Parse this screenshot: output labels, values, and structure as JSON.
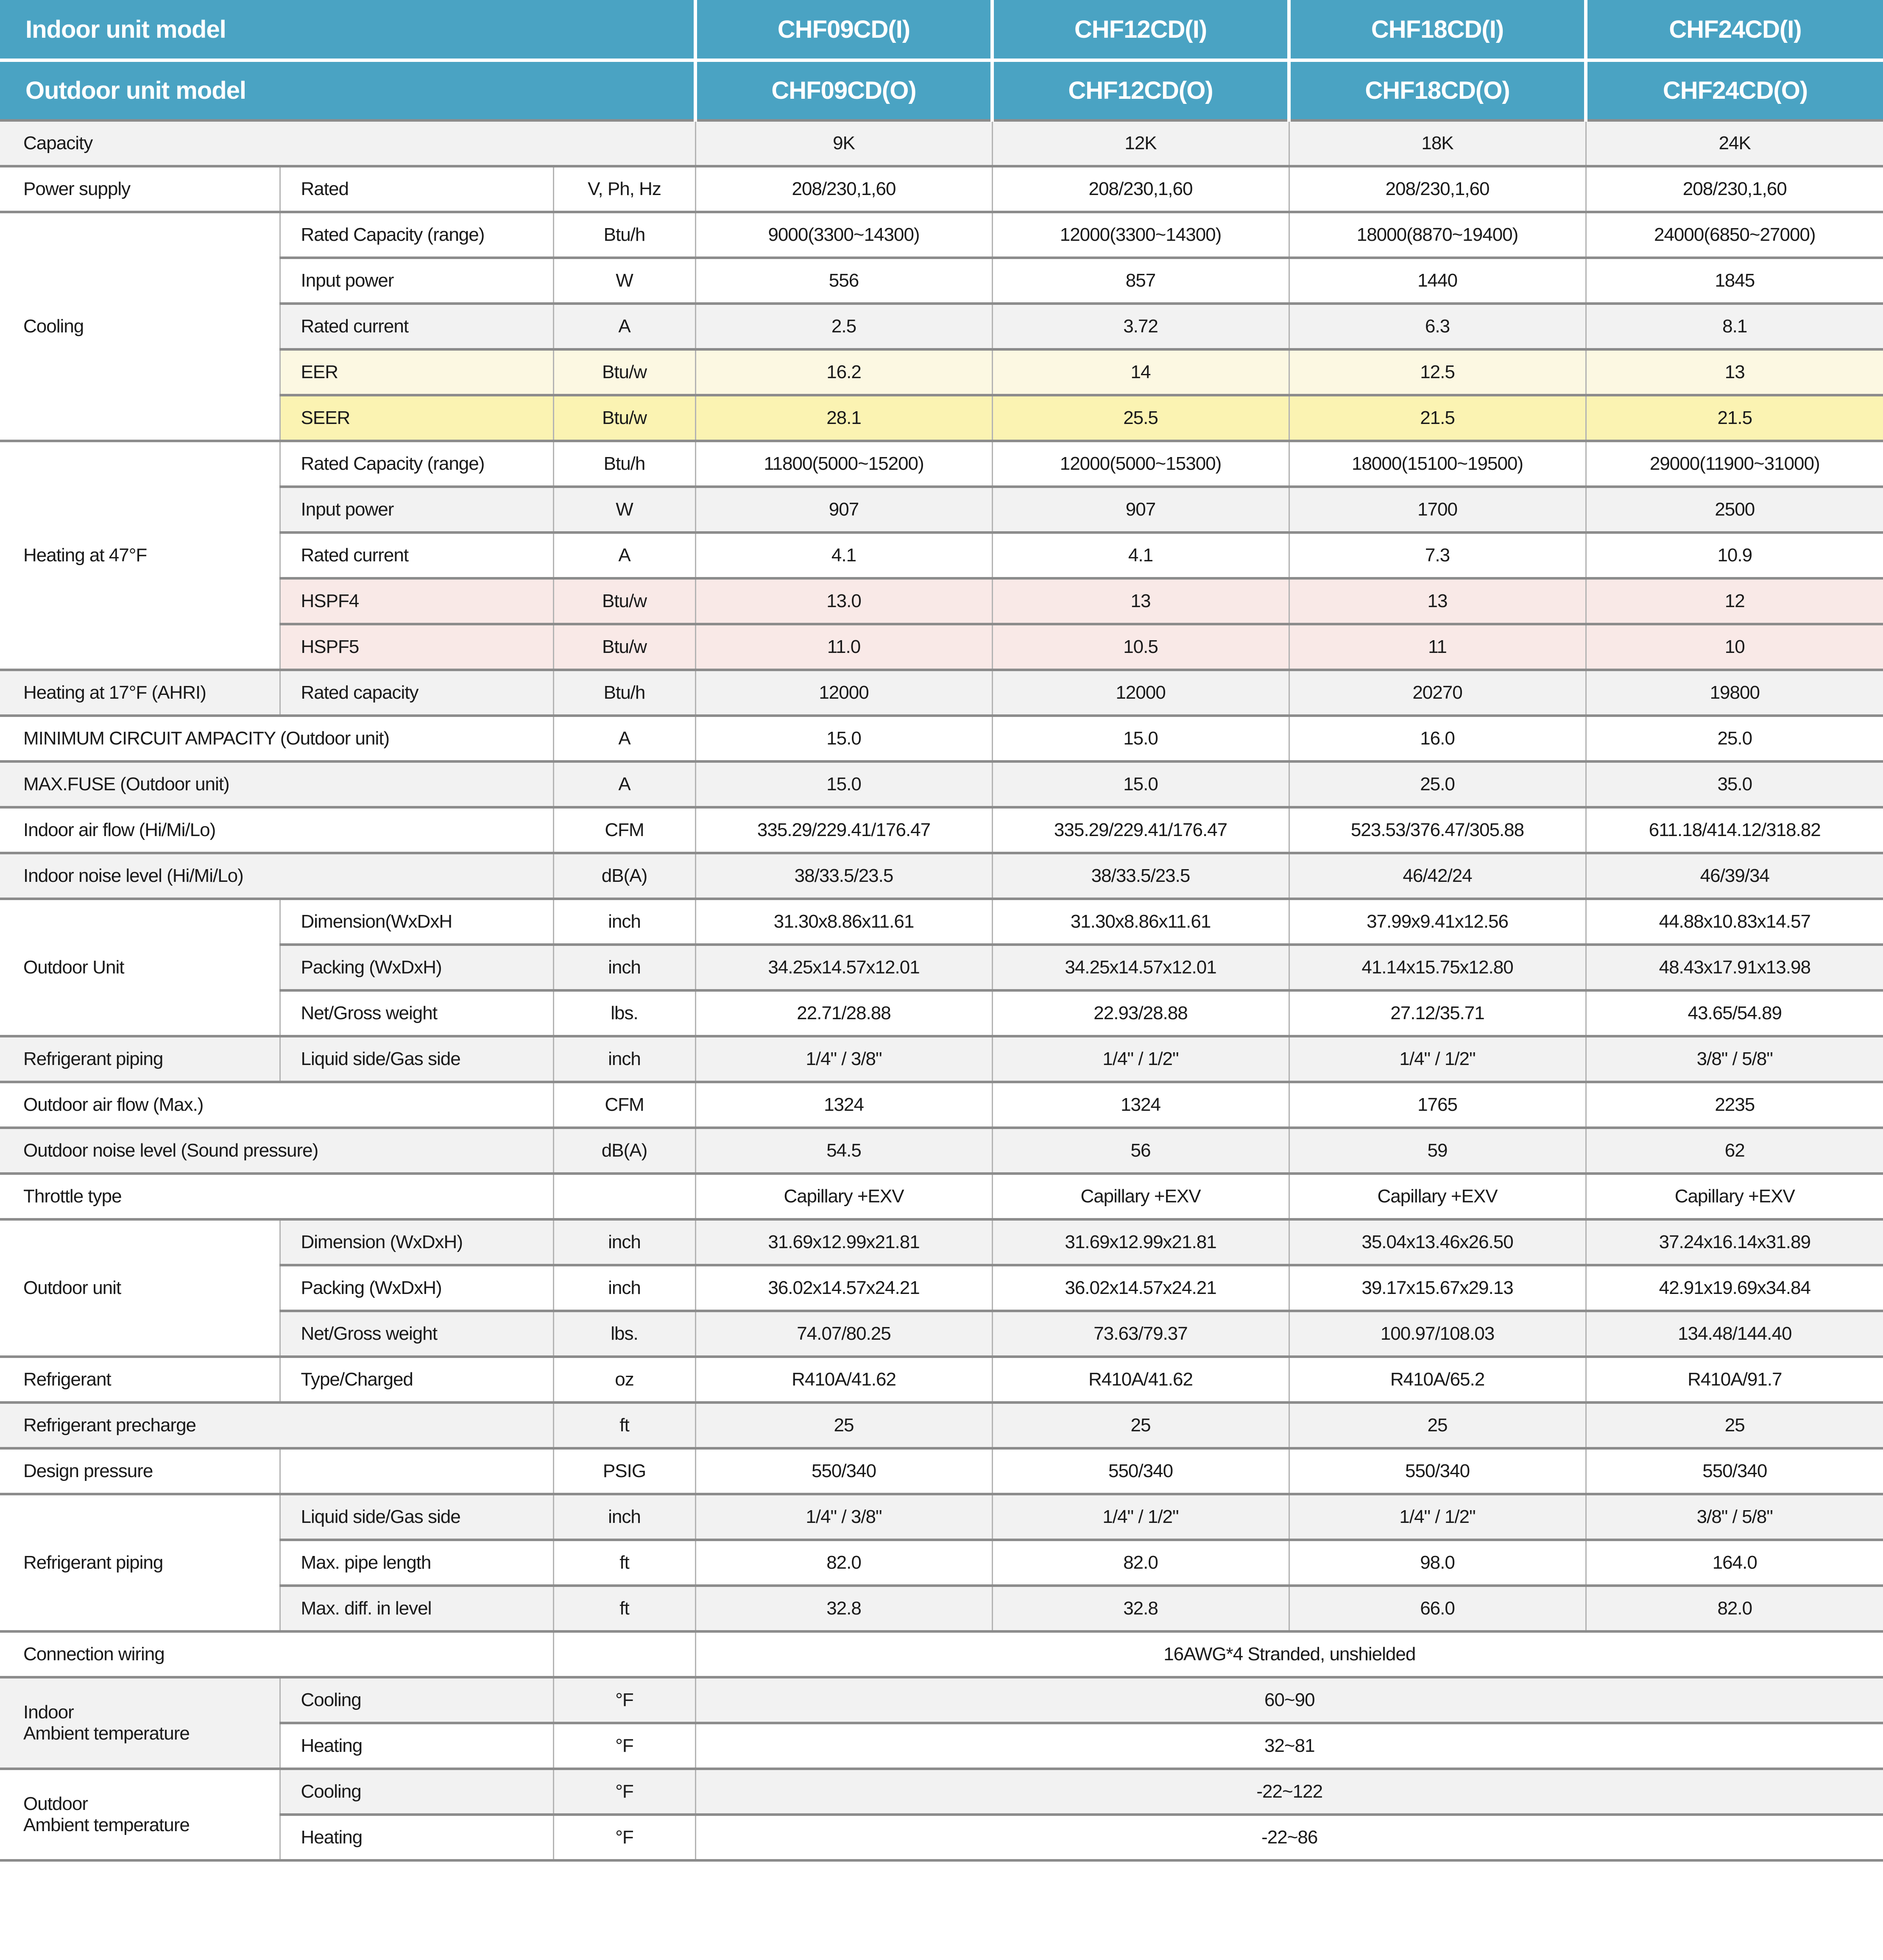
{
  "title": "Air conditioner specification table",
  "colors": {
    "header_teal": "#4AA3C3",
    "header_text": "#FFFFFF",
    "row_gray": "#F2F2F2",
    "row_white": "#FFFFFF",
    "eer_yellow": "#FCF8E2",
    "seer_yellow": "#FBF3B2",
    "hspf_pink": "#F9E9E7",
    "border_horizontal": "#8C8C8C",
    "border_vertical": "#B3B3B3",
    "text": "#1A1A1A"
  },
  "header": {
    "rows": [
      {
        "label": "Indoor unit model",
        "models": [
          "CHF09CD(I)",
          "CHF12CD(I)",
          "CHF18CD(I)",
          "CHF24CD(I)"
        ]
      },
      {
        "label": "Outdoor unit model",
        "models": [
          "CHF09CD(O)",
          "CHF12CD(O)",
          "CHF18CD(O)",
          "CHF24CD(O)"
        ]
      }
    ]
  },
  "rows": [
    {
      "name": "capacity",
      "bg": "g",
      "cells": [
        {
          "t": "Capacity",
          "k": "label",
          "cs": 3
        },
        {
          "t": "9K"
        },
        {
          "t": "12K"
        },
        {
          "t": "18K"
        },
        {
          "t": "24K"
        }
      ]
    },
    {
      "name": "power-supply",
      "bg": "w",
      "cells": [
        {
          "t": "Power supply",
          "k": "label"
        },
        {
          "t": "Rated",
          "k": "sub"
        },
        {
          "t": "V, Ph, Hz",
          "k": "unit"
        },
        {
          "t": "208/230,1,60"
        },
        {
          "t": "208/230,1,60"
        },
        {
          "t": "208/230,1,60"
        },
        {
          "t": "208/230,1,60"
        }
      ]
    },
    {
      "name": "cooling-rated-capacity",
      "bg": "w",
      "cells": [
        {
          "t": "Cooling",
          "k": "label",
          "rs": 5,
          "bg": "w"
        },
        {
          "t": "Rated Capacity (range)",
          "k": "sub"
        },
        {
          "t": "Btu/h",
          "k": "unit"
        },
        {
          "t": "9000(3300~14300)"
        },
        {
          "t": "12000(3300~14300)"
        },
        {
          "t": "18000(8870~19400)"
        },
        {
          "t": "24000(6850~27000)"
        }
      ]
    },
    {
      "name": "cooling-input-power",
      "bg": "w",
      "cells": [
        {
          "t": "Input power",
          "k": "sub"
        },
        {
          "t": "W",
          "k": "unit"
        },
        {
          "t": "556"
        },
        {
          "t": "857"
        },
        {
          "t": "1440"
        },
        {
          "t": "1845"
        }
      ]
    },
    {
      "name": "cooling-rated-current",
      "bg": "g",
      "cells": [
        {
          "t": "Rated current",
          "k": "sub"
        },
        {
          "t": "A",
          "k": "unit"
        },
        {
          "t": "2.5"
        },
        {
          "t": "3.72"
        },
        {
          "t": "6.3"
        },
        {
          "t": "8.1"
        }
      ]
    },
    {
      "name": "cooling-eer",
      "bg": "y1",
      "cells": [
        {
          "t": "EER",
          "k": "sub"
        },
        {
          "t": "Btu/w",
          "k": "unit"
        },
        {
          "t": "16.2"
        },
        {
          "t": "14"
        },
        {
          "t": "12.5"
        },
        {
          "t": "13"
        }
      ]
    },
    {
      "name": "cooling-seer",
      "bg": "y2",
      "cells": [
        {
          "t": "SEER",
          "k": "sub"
        },
        {
          "t": "Btu/w",
          "k": "unit"
        },
        {
          "t": "28.1"
        },
        {
          "t": "25.5"
        },
        {
          "t": "21.5"
        },
        {
          "t": "21.5"
        }
      ]
    },
    {
      "name": "heating47-rated-capacity",
      "bg": "w",
      "cells": [
        {
          "t": "Heating at 47°F",
          "k": "label",
          "rs": 5,
          "bg": "w"
        },
        {
          "t": "Rated Capacity (range)",
          "k": "sub"
        },
        {
          "t": "Btu/h",
          "k": "unit"
        },
        {
          "t": "11800(5000~15200)"
        },
        {
          "t": "12000(5000~15300)"
        },
        {
          "t": "18000(15100~19500)"
        },
        {
          "t": "29000(11900~31000)"
        }
      ]
    },
    {
      "name": "heating47-input-power",
      "bg": "g",
      "cells": [
        {
          "t": "Input power",
          "k": "sub"
        },
        {
          "t": "W",
          "k": "unit"
        },
        {
          "t": "907"
        },
        {
          "t": "907"
        },
        {
          "t": "1700"
        },
        {
          "t": "2500"
        }
      ]
    },
    {
      "name": "heating47-rated-current",
      "bg": "w",
      "cells": [
        {
          "t": "Rated current",
          "k": "sub"
        },
        {
          "t": "A",
          "k": "unit"
        },
        {
          "t": "4.1"
        },
        {
          "t": "4.1"
        },
        {
          "t": "7.3"
        },
        {
          "t": "10.9"
        }
      ]
    },
    {
      "name": "heating47-hspf4",
      "bg": "p",
      "cells": [
        {
          "t": "HSPF4",
          "k": "sub"
        },
        {
          "t": "Btu/w",
          "k": "unit"
        },
        {
          "t": "13.0"
        },
        {
          "t": "13"
        },
        {
          "t": "13"
        },
        {
          "t": "12"
        }
      ]
    },
    {
      "name": "heating47-hspf5",
      "bg": "p",
      "cells": [
        {
          "t": "HSPF5",
          "k": "sub"
        },
        {
          "t": "Btu/w",
          "k": "unit"
        },
        {
          "t": "11.0"
        },
        {
          "t": "10.5"
        },
        {
          "t": "11"
        },
        {
          "t": "10"
        }
      ]
    },
    {
      "name": "heating17-rated-capacity",
      "bg": "g",
      "cells": [
        {
          "t": "Heating at 17°F (AHRI)",
          "k": "label"
        },
        {
          "t": "Rated capacity",
          "k": "sub"
        },
        {
          "t": "Btu/h",
          "k": "unit"
        },
        {
          "t": "12000"
        },
        {
          "t": "12000"
        },
        {
          "t": "20270"
        },
        {
          "t": "19800"
        }
      ]
    },
    {
      "name": "min-circuit-ampacity",
      "bg": "w",
      "cells": [
        {
          "t": "MINIMUM CIRCUIT AMPACITY (Outdoor unit)",
          "k": "label",
          "cs": 2
        },
        {
          "t": "A",
          "k": "unit"
        },
        {
          "t": "15.0"
        },
        {
          "t": "15.0"
        },
        {
          "t": "16.0"
        },
        {
          "t": "25.0"
        }
      ]
    },
    {
      "name": "max-fuse",
      "bg": "g",
      "cells": [
        {
          "t": "MAX.FUSE (Outdoor unit)",
          "k": "label",
          "cs": 2
        },
        {
          "t": "A",
          "k": "unit"
        },
        {
          "t": "15.0"
        },
        {
          "t": "15.0"
        },
        {
          "t": "25.0"
        },
        {
          "t": "35.0"
        }
      ]
    },
    {
      "name": "indoor-air-flow",
      "bg": "w",
      "cells": [
        {
          "t": "Indoor air flow (Hi/Mi/Lo)",
          "k": "label",
          "cs": 2
        },
        {
          "t": "CFM",
          "k": "unit"
        },
        {
          "t": "335.29/229.41/176.47"
        },
        {
          "t": "335.29/229.41/176.47"
        },
        {
          "t": "523.53/376.47/305.88"
        },
        {
          "t": "611.18/414.12/318.82"
        }
      ]
    },
    {
      "name": "indoor-noise-level",
      "bg": "g",
      "cells": [
        {
          "t": "Indoor noise level (Hi/Mi/Lo)",
          "k": "label",
          "cs": 2
        },
        {
          "t": "dB(A)",
          "k": "unit"
        },
        {
          "t": "38/33.5/23.5"
        },
        {
          "t": "38/33.5/23.5"
        },
        {
          "t": "46/42/24"
        },
        {
          "t": "46/39/34"
        }
      ]
    },
    {
      "name": "outdoor-unit1-dimension",
      "bg": "w",
      "cells": [
        {
          "t": "Outdoor Unit",
          "k": "label",
          "rs": 3,
          "bg": "w"
        },
        {
          "t": "Dimension(WxDxH",
          "k": "sub"
        },
        {
          "t": "inch",
          "k": "unit"
        },
        {
          "t": "31.30x8.86x11.61"
        },
        {
          "t": "31.30x8.86x11.61"
        },
        {
          "t": "37.99x9.41x12.56"
        },
        {
          "t": "44.88x10.83x14.57"
        }
      ]
    },
    {
      "name": "outdoor-unit1-packing",
      "bg": "g",
      "cells": [
        {
          "t": "Packing  (WxDxH)",
          "k": "sub"
        },
        {
          "t": "inch",
          "k": "unit"
        },
        {
          "t": "34.25x14.57x12.01"
        },
        {
          "t": "34.25x14.57x12.01"
        },
        {
          "t": "41.14x15.75x12.80"
        },
        {
          "t": "48.43x17.91x13.98"
        }
      ]
    },
    {
      "name": "outdoor-unit1-weight",
      "bg": "w",
      "cells": [
        {
          "t": "Net/Gross weight",
          "k": "sub"
        },
        {
          "t": "lbs.",
          "k": "unit"
        },
        {
          "t": "22.71/28.88"
        },
        {
          "t": "22.93/28.88"
        },
        {
          "t": "27.12/35.71"
        },
        {
          "t": "43.65/54.89"
        }
      ]
    },
    {
      "name": "refrigerant-piping1",
      "bg": "g",
      "cells": [
        {
          "t": "Refrigerant piping",
          "k": "label"
        },
        {
          "t": "Liquid side/Gas side",
          "k": "sub"
        },
        {
          "t": "inch",
          "k": "unit"
        },
        {
          "t": "1/4\" / 3/8\""
        },
        {
          "t": "1/4\" / 1/2\""
        },
        {
          "t": "1/4\" / 1/2\""
        },
        {
          "t": "3/8\" / 5/8\""
        }
      ]
    },
    {
      "name": "outdoor-air-flow",
      "bg": "w",
      "cells": [
        {
          "t": "Outdoor air flow (Max.)",
          "k": "label",
          "cs": 2
        },
        {
          "t": "CFM",
          "k": "unit"
        },
        {
          "t": "1324"
        },
        {
          "t": "1324"
        },
        {
          "t": "1765"
        },
        {
          "t": "2235"
        }
      ]
    },
    {
      "name": "outdoor-noise-level",
      "bg": "g",
      "cells": [
        {
          "t": "Outdoor noise level (Sound pressure)",
          "k": "label",
          "cs": 2
        },
        {
          "t": "dB(A)",
          "k": "unit"
        },
        {
          "t": "54.5"
        },
        {
          "t": "56"
        },
        {
          "t": "59"
        },
        {
          "t": "62"
        }
      ]
    },
    {
      "name": "throttle-type",
      "bg": "w",
      "cells": [
        {
          "t": "Throttle type",
          "k": "label",
          "cs": 2
        },
        {
          "t": "",
          "k": "unit"
        },
        {
          "t": "Capillary +EXV"
        },
        {
          "t": "Capillary +EXV"
        },
        {
          "t": "Capillary +EXV"
        },
        {
          "t": "Capillary +EXV"
        }
      ]
    },
    {
      "name": "outdoor-unit2-dimension",
      "bg": "g",
      "cells": [
        {
          "t": "Outdoor unit",
          "k": "label",
          "rs": 3,
          "bg": "w"
        },
        {
          "t": "Dimension (WxDxH)",
          "k": "sub"
        },
        {
          "t": "inch",
          "k": "unit"
        },
        {
          "t": "31.69x12.99x21.81"
        },
        {
          "t": "31.69x12.99x21.81"
        },
        {
          "t": "35.04x13.46x26.50"
        },
        {
          "t": "37.24x16.14x31.89"
        }
      ]
    },
    {
      "name": "outdoor-unit2-packing",
      "bg": "w",
      "cells": [
        {
          "t": "Packing (WxDxH)",
          "k": "sub"
        },
        {
          "t": "inch",
          "k": "unit"
        },
        {
          "t": "36.02x14.57x24.21"
        },
        {
          "t": "36.02x14.57x24.21"
        },
        {
          "t": "39.17x15.67x29.13"
        },
        {
          "t": "42.91x19.69x34.84"
        }
      ]
    },
    {
      "name": "outdoor-unit2-weight",
      "bg": "g",
      "cells": [
        {
          "t": "Net/Gross weight",
          "k": "sub"
        },
        {
          "t": "lbs.",
          "k": "unit"
        },
        {
          "t": "74.07/80.25"
        },
        {
          "t": "73.63/79.37"
        },
        {
          "t": "100.97/108.03"
        },
        {
          "t": "134.48/144.40"
        }
      ]
    },
    {
      "name": "refrigerant-type",
      "bg": "w",
      "cells": [
        {
          "t": "Refrigerant",
          "k": "label"
        },
        {
          "t": "Type/Charged",
          "k": "sub"
        },
        {
          "t": "oz",
          "k": "unit"
        },
        {
          "t": "R410A/41.62"
        },
        {
          "t": "R410A/41.62"
        },
        {
          "t": "R410A/65.2"
        },
        {
          "t": "R410A/91.7"
        }
      ]
    },
    {
      "name": "refrigerant-precharge",
      "bg": "g",
      "cells": [
        {
          "t": "Refrigerant precharge",
          "k": "label",
          "cs": 2
        },
        {
          "t": "ft",
          "k": "unit"
        },
        {
          "t": "25"
        },
        {
          "t": "25"
        },
        {
          "t": "25"
        },
        {
          "t": "25"
        }
      ]
    },
    {
      "name": "design-pressure",
      "bg": "w",
      "cells": [
        {
          "t": "Design pressure",
          "k": "label"
        },
        {
          "t": "",
          "k": "sub"
        },
        {
          "t": "PSIG",
          "k": "unit"
        },
        {
          "t": "550/340"
        },
        {
          "t": "550/340"
        },
        {
          "t": "550/340"
        },
        {
          "t": "550/340"
        }
      ]
    },
    {
      "name": "refrigerant-piping2-size",
      "bg": "g",
      "cells": [
        {
          "t": "Refrigerant piping",
          "k": "label",
          "rs": 3,
          "bg": "w"
        },
        {
          "t": "Liquid side/Gas side",
          "k": "sub"
        },
        {
          "t": "inch",
          "k": "unit"
        },
        {
          "t": "1/4\" / 3/8\""
        },
        {
          "t": "1/4\" / 1/2\""
        },
        {
          "t": "1/4\" / 1/2\""
        },
        {
          "t": "3/8\" / 5/8\""
        }
      ]
    },
    {
      "name": "refrigerant-piping2-max-length",
      "bg": "w",
      "cells": [
        {
          "t": "Max. pipe length",
          "k": "sub"
        },
        {
          "t": "ft",
          "k": "unit"
        },
        {
          "t": "82.0"
        },
        {
          "t": "82.0"
        },
        {
          "t": "98.0"
        },
        {
          "t": "164.0"
        }
      ]
    },
    {
      "name": "refrigerant-piping2-max-diff",
      "bg": "g",
      "cells": [
        {
          "t": "Max. diff.  in level",
          "k": "sub"
        },
        {
          "t": "ft",
          "k": "unit"
        },
        {
          "t": "32.8"
        },
        {
          "t": "32.8"
        },
        {
          "t": "66.0"
        },
        {
          "t": "82.0"
        }
      ]
    },
    {
      "name": "connection-wiring",
      "bg": "w",
      "cells": [
        {
          "t": "Connection wiring",
          "k": "label",
          "cs": 2
        },
        {
          "t": "",
          "k": "unit"
        },
        {
          "t": "16AWG*4  Stranded, unshielded",
          "cs": 4
        }
      ]
    },
    {
      "name": "indoor-ambient-cooling",
      "bg": "g",
      "cells": [
        {
          "t": "Indoor\nAmbient temperature",
          "k": "label",
          "rs": 2,
          "bg": "g"
        },
        {
          "t": "Cooling",
          "k": "sub"
        },
        {
          "t": "°F",
          "k": "unit"
        },
        {
          "t": "60~90",
          "cs": 4
        }
      ]
    },
    {
      "name": "indoor-ambient-heating",
      "bg": "w",
      "cells": [
        {
          "t": "Heating",
          "k": "sub"
        },
        {
          "t": "°F",
          "k": "unit"
        },
        {
          "t": "32~81",
          "cs": 4
        }
      ]
    },
    {
      "name": "outdoor-ambient-cooling",
      "bg": "g",
      "cells": [
        {
          "t": "Outdoor\nAmbient  temperature",
          "k": "label",
          "rs": 2,
          "bg": "w"
        },
        {
          "t": "Cooling",
          "k": "sub"
        },
        {
          "t": "°F",
          "k": "unit"
        },
        {
          "t": "-22~122",
          "cs": 4
        }
      ]
    },
    {
      "name": "outdoor-ambient-heating",
      "bg": "w",
      "cells": [
        {
          "t": "Heating",
          "k": "sub"
        },
        {
          "t": "°F",
          "k": "unit"
        },
        {
          "t": "-22~86",
          "cs": 4
        }
      ]
    }
  ]
}
